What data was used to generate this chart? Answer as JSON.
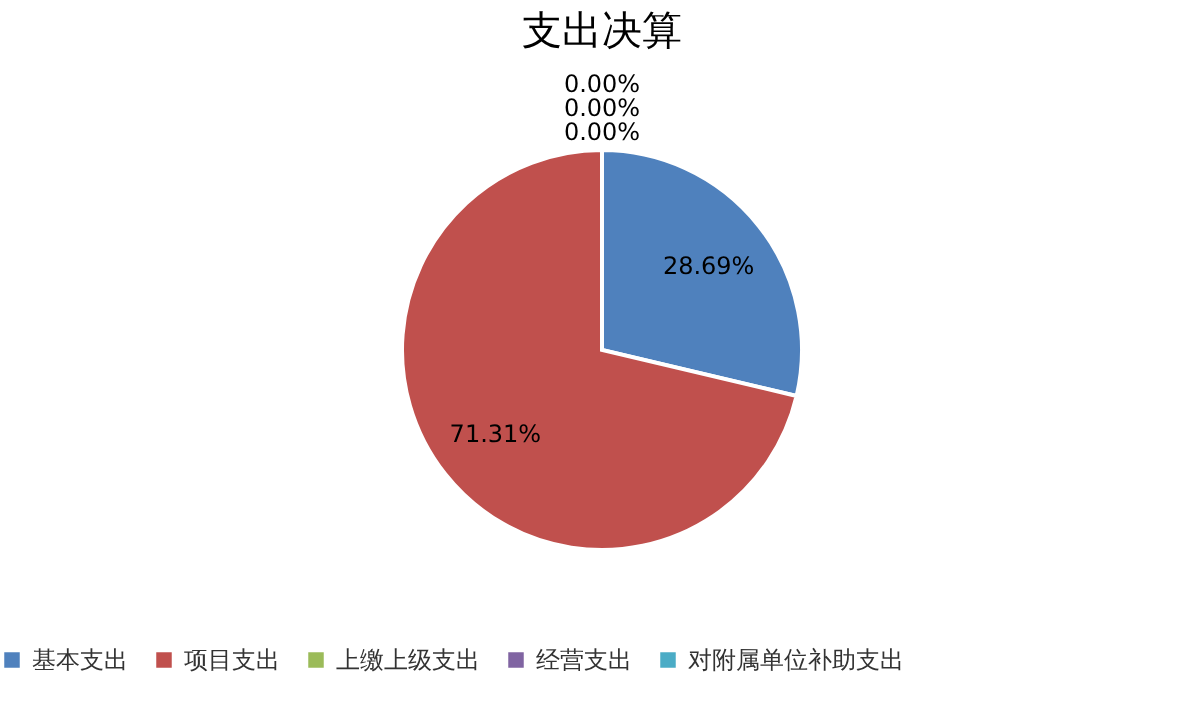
{
  "chart_data": {
    "type": "pie",
    "title": "支出决算",
    "categories": [
      "基本支出",
      "项目支出",
      "上缴上级支出",
      "经营支出",
      "对附属单位补助支出"
    ],
    "values": [
      28.69,
      71.31,
      0,
      0,
      0
    ],
    "value_labels": [
      "28.69%",
      "71.31%",
      "0.00%",
      "0.00%",
      "0.00%"
    ],
    "colors": [
      "#4f81bd",
      "#c0504d",
      "#9bbb59",
      "#8064a2",
      "#4bacc6"
    ],
    "legend": "bottom"
  }
}
